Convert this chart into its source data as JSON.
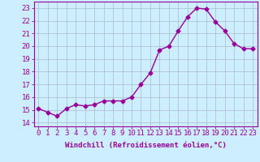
{
  "x": [
    0,
    1,
    2,
    3,
    4,
    5,
    6,
    7,
    8,
    9,
    10,
    11,
    12,
    13,
    14,
    15,
    16,
    17,
    18,
    19,
    20,
    21,
    22,
    23
  ],
  "y": [
    15.1,
    14.8,
    14.5,
    15.1,
    15.4,
    15.3,
    15.4,
    15.7,
    15.7,
    15.7,
    16.0,
    17.0,
    17.9,
    19.7,
    20.0,
    21.2,
    22.3,
    23.0,
    22.9,
    21.9,
    21.2,
    20.2,
    19.8,
    19.8
  ],
  "line_color": "#990099",
  "marker": "D",
  "markersize": 2.5,
  "linewidth": 1.0,
  "bg_color": "#cceeff",
  "grid_color": "#aabbcc",
  "xlabel": "Windchill (Refroidissement éolien,°C)",
  "xlim": [
    -0.5,
    23.5
  ],
  "ylim": [
    13.7,
    23.5
  ],
  "yticks": [
    14,
    15,
    16,
    17,
    18,
    19,
    20,
    21,
    22,
    23
  ],
  "xticks": [
    0,
    1,
    2,
    3,
    4,
    5,
    6,
    7,
    8,
    9,
    10,
    11,
    12,
    13,
    14,
    15,
    16,
    17,
    18,
    19,
    20,
    21,
    22,
    23
  ],
  "xlabel_fontsize": 6.5,
  "tick_fontsize": 6.5,
  "tick_color": "#990099",
  "axis_color": "#990099"
}
